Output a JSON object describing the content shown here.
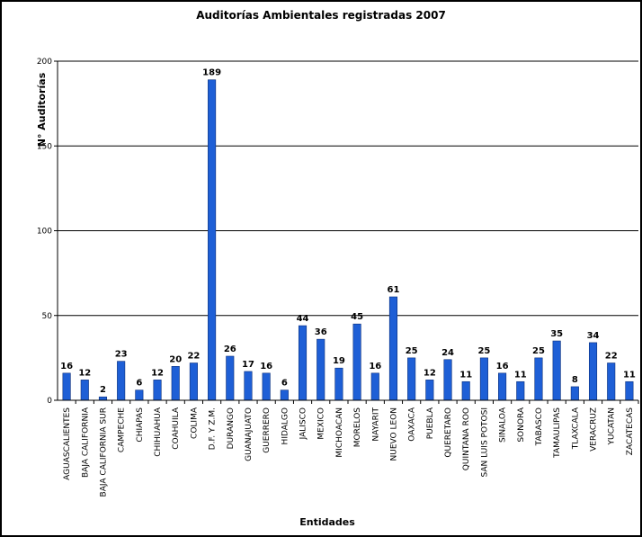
{
  "chart_data": {
    "type": "bar",
    "title": "Auditorías Ambientales registradas 2007",
    "xlabel": "Entidades",
    "ylabel": "N° Auditorías",
    "ylim": [
      0,
      200
    ],
    "yticks": [
      "0",
      "50",
      "100",
      "150",
      "200"
    ],
    "grid": true,
    "legend": "none",
    "bar_color": "#1e5fd6",
    "categories": [
      "AGUASCALIENTES",
      "BAJA CALIFORNIA",
      "BAJA CALIFORNIA SUR",
      "CAMPECHE",
      "CHIAPAS",
      "CHIHUAHUA",
      "COAHUILA",
      "COLIMA",
      "D.F. Y Z.M.",
      "DURANGO",
      "GUANAJUATO",
      "GUERRERO",
      "HIDALGO",
      "JALISCO",
      "MEXICO",
      "MICHOACAN",
      "MORELOS",
      "NAYARIT",
      "NUEVO LEON",
      "OAXACA",
      "PUEBLA",
      "QUERETARO",
      "QUINTANA ROO",
      "SAN LUIS POTOSI",
      "SINALOA",
      "SONORA",
      "TABASCO",
      "TAMAULIPAS",
      "TLAXCALA",
      "VERACRUZ",
      "YUCATAN",
      "ZACATECAS"
    ],
    "values": [
      16,
      12,
      2,
      23,
      6,
      12,
      20,
      22,
      189,
      26,
      17,
      16,
      6,
      44,
      36,
      19,
      45,
      16,
      61,
      25,
      12,
      24,
      11,
      25,
      16,
      11,
      25,
      35,
      8,
      34,
      22,
      11
    ]
  }
}
